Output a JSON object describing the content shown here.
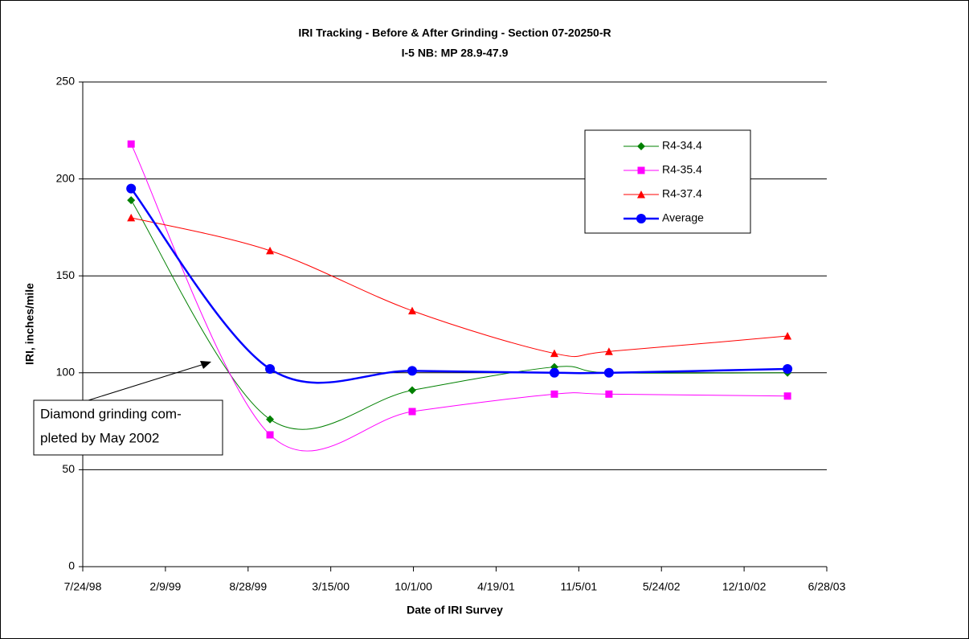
{
  "chart_data": {
    "type": "line",
    "title": "IRI Tracking - Before & After Grinding - Section 07-20250-R",
    "subtitle": "I-5 NB: MP 28.9-47.9",
    "x_label": "Date of IRI Survey",
    "y_label": "IRI, inches/mile",
    "annotation": [
      "Diamond grinding com-",
      "pleted by May 2002"
    ],
    "x": [
      36117,
      36453,
      36797,
      37141,
      37273,
      37705
    ],
    "series": [
      {
        "name": "R4-34.4",
        "color": "#008000",
        "marker": "diamond",
        "values": [
          189,
          76,
          91,
          103,
          100,
          100
        ]
      },
      {
        "name": "R4-35.4",
        "color": "#ff00ff",
        "marker": "square",
        "values": [
          218,
          68,
          80,
          89,
          89,
          88
        ]
      },
      {
        "name": "R4-37.4",
        "color": "#ff0000",
        "marker": "triangle",
        "values": [
          180,
          163,
          132,
          110,
          111,
          119
        ]
      },
      {
        "name": "Average",
        "color": "#0000ff",
        "marker": "circle",
        "values": [
          195,
          102,
          101,
          100,
          100,
          102
        ]
      }
    ],
    "xlim": [
      36000,
      37800
    ],
    "xticks": [
      {
        "value": 36000,
        "label": "7/24/98"
      },
      {
        "value": 36200,
        "label": "2/9/99"
      },
      {
        "value": 36400,
        "label": "8/28/99"
      },
      {
        "value": 36600,
        "label": "3/15/00"
      },
      {
        "value": 36800,
        "label": "10/1/00"
      },
      {
        "value": 37000,
        "label": "4/19/01"
      },
      {
        "value": 37200,
        "label": "11/5/01"
      },
      {
        "value": 37400,
        "label": "5/24/02"
      },
      {
        "value": 37600,
        "label": "12/10/02"
      },
      {
        "value": 37800,
        "label": "6/28/03"
      }
    ],
    "ylim": [
      0,
      250
    ],
    "yticks": [
      0,
      50,
      100,
      150,
      200,
      250
    ],
    "grid": true,
    "legend": "upper right",
    "smooth": true
  }
}
